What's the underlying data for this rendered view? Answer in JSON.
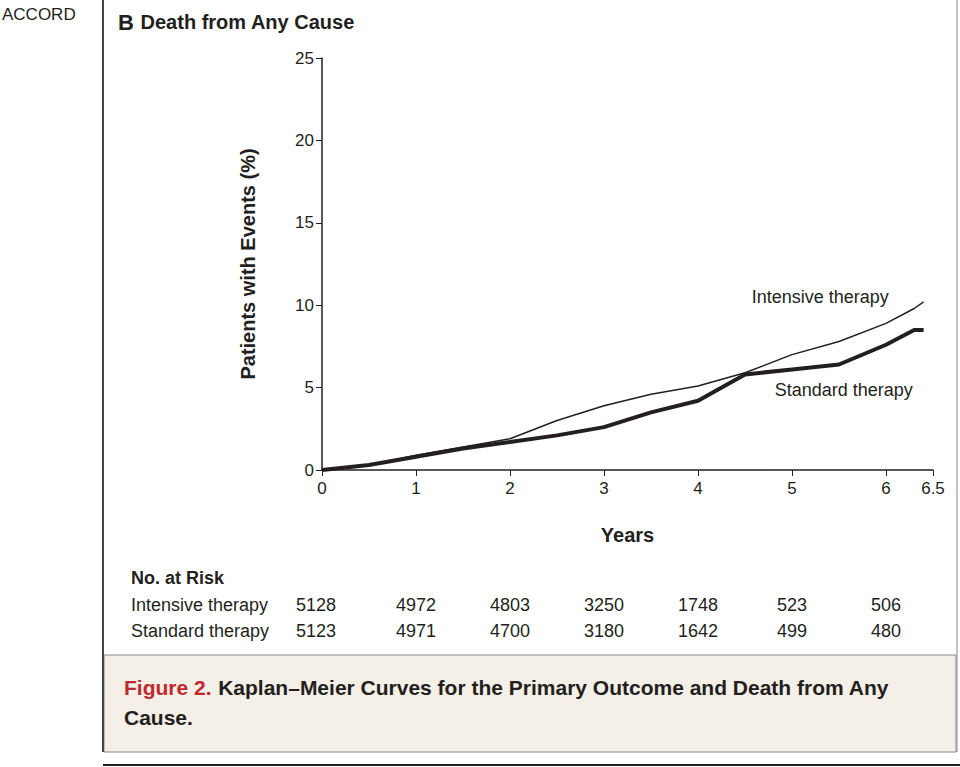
{
  "header": "ACCORD",
  "chart_data": {
    "type": "line",
    "panel": "B",
    "title": "Death from Any Cause",
    "x_label": "Years",
    "y_label": "Patients with Events (%)",
    "x": [
      0,
      0.5,
      1,
      1.5,
      2,
      2.5,
      3,
      3.5,
      4,
      4.5,
      5,
      5.5,
      6,
      6.3,
      6.4
    ],
    "series": [
      {
        "name": "Intensive therapy",
        "color": "#231f20",
        "line_style": "thin",
        "values": [
          0,
          0.3,
          0.9,
          1.4,
          1.9,
          3.0,
          3.9,
          4.6,
          5.1,
          5.9,
          7.0,
          7.8,
          8.9,
          9.8,
          10.2
        ],
        "label_x": 5.3,
        "label_y": 10.5
      },
      {
        "name": "Standard therapy",
        "color": "#231f20",
        "line_style": "bold",
        "values": [
          0,
          0.3,
          0.8,
          1.3,
          1.7,
          2.1,
          2.6,
          3.5,
          4.2,
          5.8,
          6.1,
          6.4,
          7.6,
          8.5,
          8.5
        ],
        "label_x": 5.55,
        "label_y": 4.85
      }
    ],
    "xlim": [
      0,
      6.5
    ],
    "xticks": [
      0,
      1,
      2,
      3,
      4,
      5,
      6
    ],
    "ylim": [
      0,
      25
    ],
    "yticks": [
      0,
      5,
      10,
      15,
      20,
      25
    ],
    "grid": false,
    "risk_table": {
      "title": "No. at Risk",
      "times": [
        0,
        1,
        2,
        3,
        4,
        5,
        6
      ],
      "rows": [
        {
          "name": "Intensive therapy",
          "values": [
            5128,
            4972,
            4803,
            3250,
            1748,
            523,
            506
          ]
        },
        {
          "name": "Standard therapy",
          "values": [
            5123,
            4971,
            4700,
            3180,
            1642,
            499,
            480
          ]
        }
      ]
    },
    "caption_label": "Figure 2.",
    "caption": "Kaplan–Meier Curves for the Primary Outcome and Death from Any Cause."
  }
}
